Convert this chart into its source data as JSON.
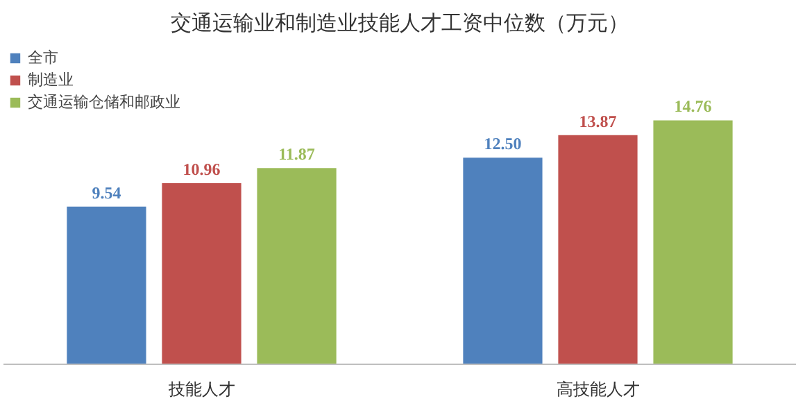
{
  "chart_data": {
    "type": "bar",
    "title": "交通运输业和制造业技能人才工资中位数（万元）",
    "categories": [
      "技能人才",
      "高技能人才"
    ],
    "series": [
      {
        "name": "全市",
        "color": "#4f81bd",
        "values": [
          9.54,
          12.5
        ],
        "value_labels": [
          "9.54",
          "12.50"
        ]
      },
      {
        "name": "制造业",
        "color": "#c0504d",
        "values": [
          10.96,
          13.87
        ],
        "value_labels": [
          "10.96",
          "13.87"
        ]
      },
      {
        "name": "交通运输仓储和邮政业",
        "color": "#9bbb59",
        "values": [
          11.87,
          14.76
        ],
        "value_labels": [
          "11.87",
          "14.76"
        ]
      }
    ],
    "legend": "top left"
  }
}
